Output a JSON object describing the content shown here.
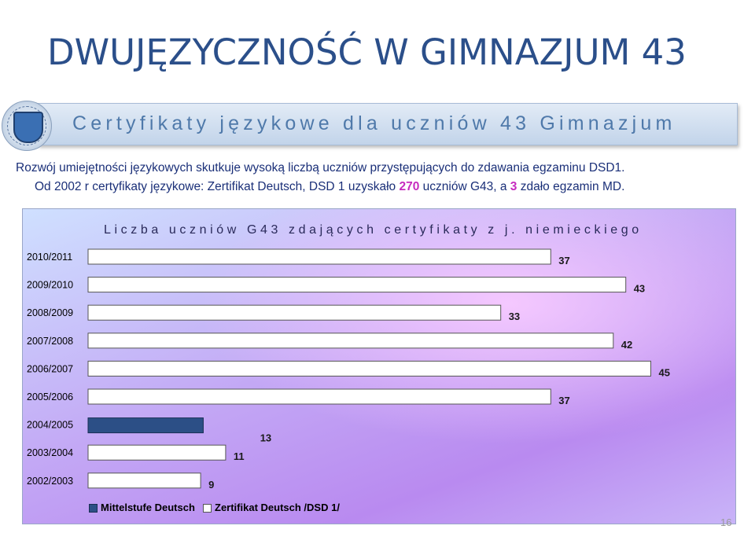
{
  "header": {
    "title": "DWUJĘZYCZNOŚĆ W GIMNAZJUM 43",
    "subtitle": "Certyfikaty językowe dla uczniów 43 Gimnazjum"
  },
  "intro": {
    "line1": "Rozwój umiejętności językowych skutkuje wysoką liczbą uczniów przystępujących  do zdawania egzaminu DSD1.",
    "line2_a": "Od 2002 r certyfikaty językowe: Zertifikat Deutsch, DSD 1 uzyskało ",
    "line2_b": "270",
    "line2_c": " uczniów G43, a ",
    "line2_d": "3",
    "line2_e": " zdało egzamin MD."
  },
  "page_number": "16",
  "colors": {
    "mittelstufe": "#2c4f86",
    "zertifikat": "#ffffff",
    "title": "#2b4f8a",
    "highlight": "#c62bbf"
  },
  "chart_data": {
    "type": "bar",
    "orientation": "horizontal",
    "title": "Liczba uczniów G43 zdających certyfikaty z j. niemieckiego",
    "categories": [
      "2010/2011",
      "2009/2010",
      "2008/2009",
      "2007/2008",
      "2006/2007",
      "2005/2006",
      "2004/2005",
      "2003/2004",
      "2002/2003"
    ],
    "series": [
      {
        "name": "Mittelstufe Deutsch",
        "values": [
          0,
          0,
          0,
          0,
          0,
          0,
          3,
          0,
          0
        ]
      },
      {
        "name": "Zertifikat Deutsch /DSD 1/",
        "values": [
          37,
          43,
          33,
          42,
          45,
          37,
          13,
          11,
          9
        ]
      }
    ],
    "data_labels": [
      "37",
      "43",
      "33",
      "42",
      "45",
      "37",
      "13",
      "11",
      "9"
    ],
    "xlim": [
      0,
      48
    ],
    "grid": false,
    "legend": "bottom"
  }
}
